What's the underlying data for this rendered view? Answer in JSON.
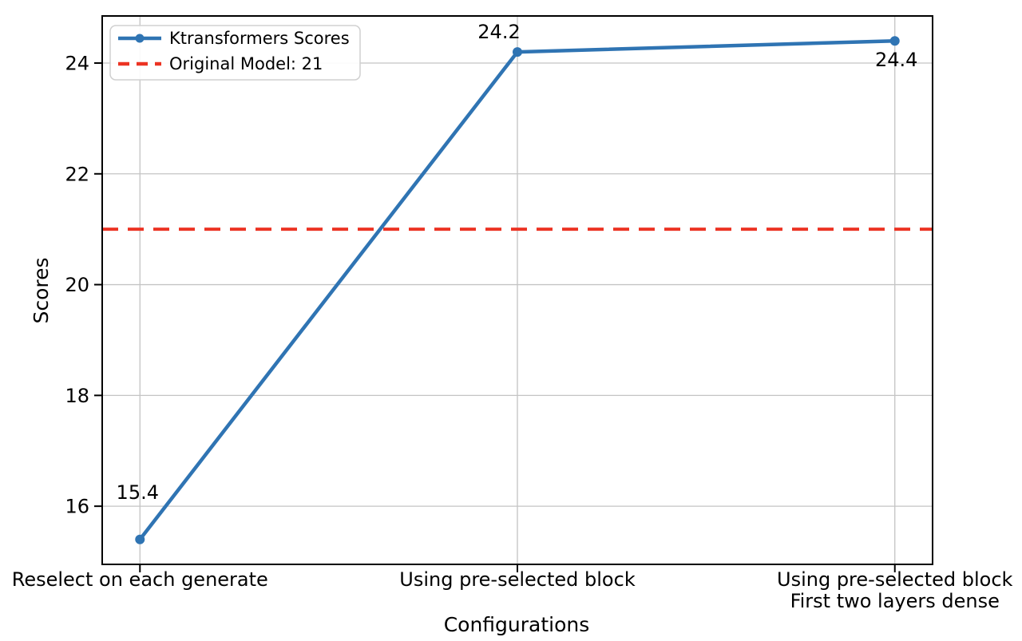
{
  "chart_data": {
    "type": "line",
    "title": "",
    "xlabel": "Configurations",
    "ylabel": "Scores",
    "categories": [
      "Reselect on each generate",
      "Using pre-selected block",
      "Using pre-selected block\nFirst two layers dense"
    ],
    "series": [
      {
        "name": "Ktransformers Scores",
        "values": [
          15.4,
          24.2,
          24.4
        ],
        "color": "#2f74b3",
        "marker": "circle",
        "style": "solid"
      }
    ],
    "reference_line": {
      "label": "Original Model: 21",
      "value": 21,
      "color": "#ec3323",
      "style": "dashed"
    },
    "point_labels": [
      "15.4",
      "24.2",
      "24.4"
    ],
    "yticks": [
      "16",
      "18",
      "20",
      "22",
      "24"
    ],
    "ylim": [
      14.95,
      24.85
    ],
    "grid": true,
    "legend_position": "upper-left",
    "colors": {
      "grid": "#c4c4c4",
      "spine": "#000000",
      "text": "#000000",
      "background": "#ffffff",
      "legend_border": "#d0d0d0"
    }
  }
}
